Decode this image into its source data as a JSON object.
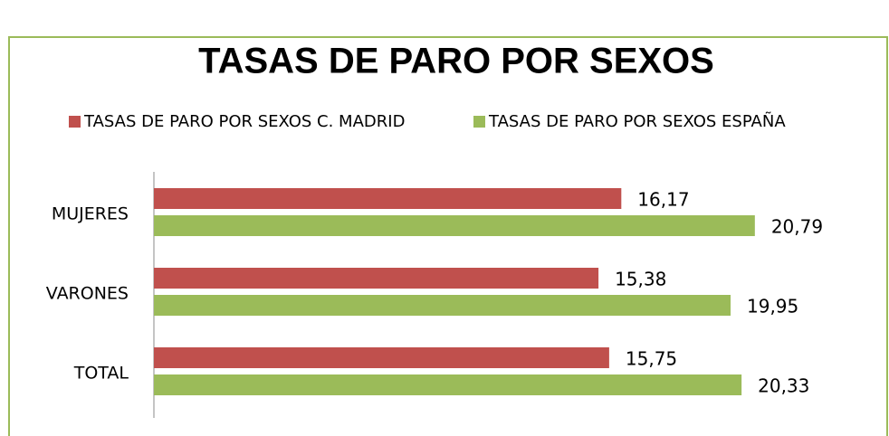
{
  "chart_data": {
    "type": "hbar",
    "title": "TASAS DE PARO POR SEXOS",
    "categories": [
      "MUJERES",
      "VARONES",
      "TOTAL"
    ],
    "series": [
      {
        "name": "TASAS DE PARO POR SEXOS C. MADRID",
        "color": "#c0504d",
        "values": [
          16.17,
          15.38,
          15.75
        ],
        "value_labels": [
          "16,17",
          "15,38",
          "15,75"
        ]
      },
      {
        "name": "TASAS DE PARO POR SEXOS ESPAÑA",
        "color": "#9bbb59",
        "values": [
          20.79,
          19.95,
          20.33
        ],
        "value_labels": [
          "20,79",
          "19,95",
          "20,33"
        ]
      }
    ],
    "legend": "top"
  }
}
